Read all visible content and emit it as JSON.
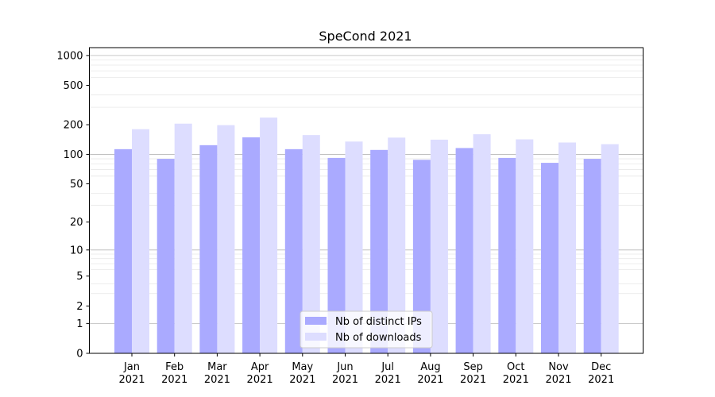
{
  "chart_data": {
    "type": "bar",
    "title": "SpeCond 2021",
    "xlabel": "",
    "ylabel": "",
    "y_scale": "log (value+1)",
    "ylim": [
      0,
      1200
    ],
    "y_ticks": [
      0,
      1,
      2,
      5,
      10,
      20,
      50,
      100,
      200,
      500,
      1000
    ],
    "grid": true,
    "legend_position": "bottom-center",
    "categories": [
      "Jan\n2021",
      "Feb\n2021",
      "Mar\n2021",
      "Apr\n2021",
      "May\n2021",
      "Jun\n2021",
      "Jul\n2021",
      "Aug\n2021",
      "Sep\n2021",
      "Oct\n2021",
      "Nov\n2021",
      "Dec\n2021"
    ],
    "series": [
      {
        "name": "Nb of distinct IPs",
        "color": "#aaaaff",
        "values": [
          113,
          90,
          124,
          149,
          113,
          92,
          111,
          88,
          116,
          92,
          82,
          90
        ]
      },
      {
        "name": "Nb of downloads",
        "color": "#ddddff",
        "values": [
          180,
          205,
          198,
          236,
          157,
          135,
          148,
          141,
          160,
          142,
          132,
          127
        ]
      }
    ]
  }
}
